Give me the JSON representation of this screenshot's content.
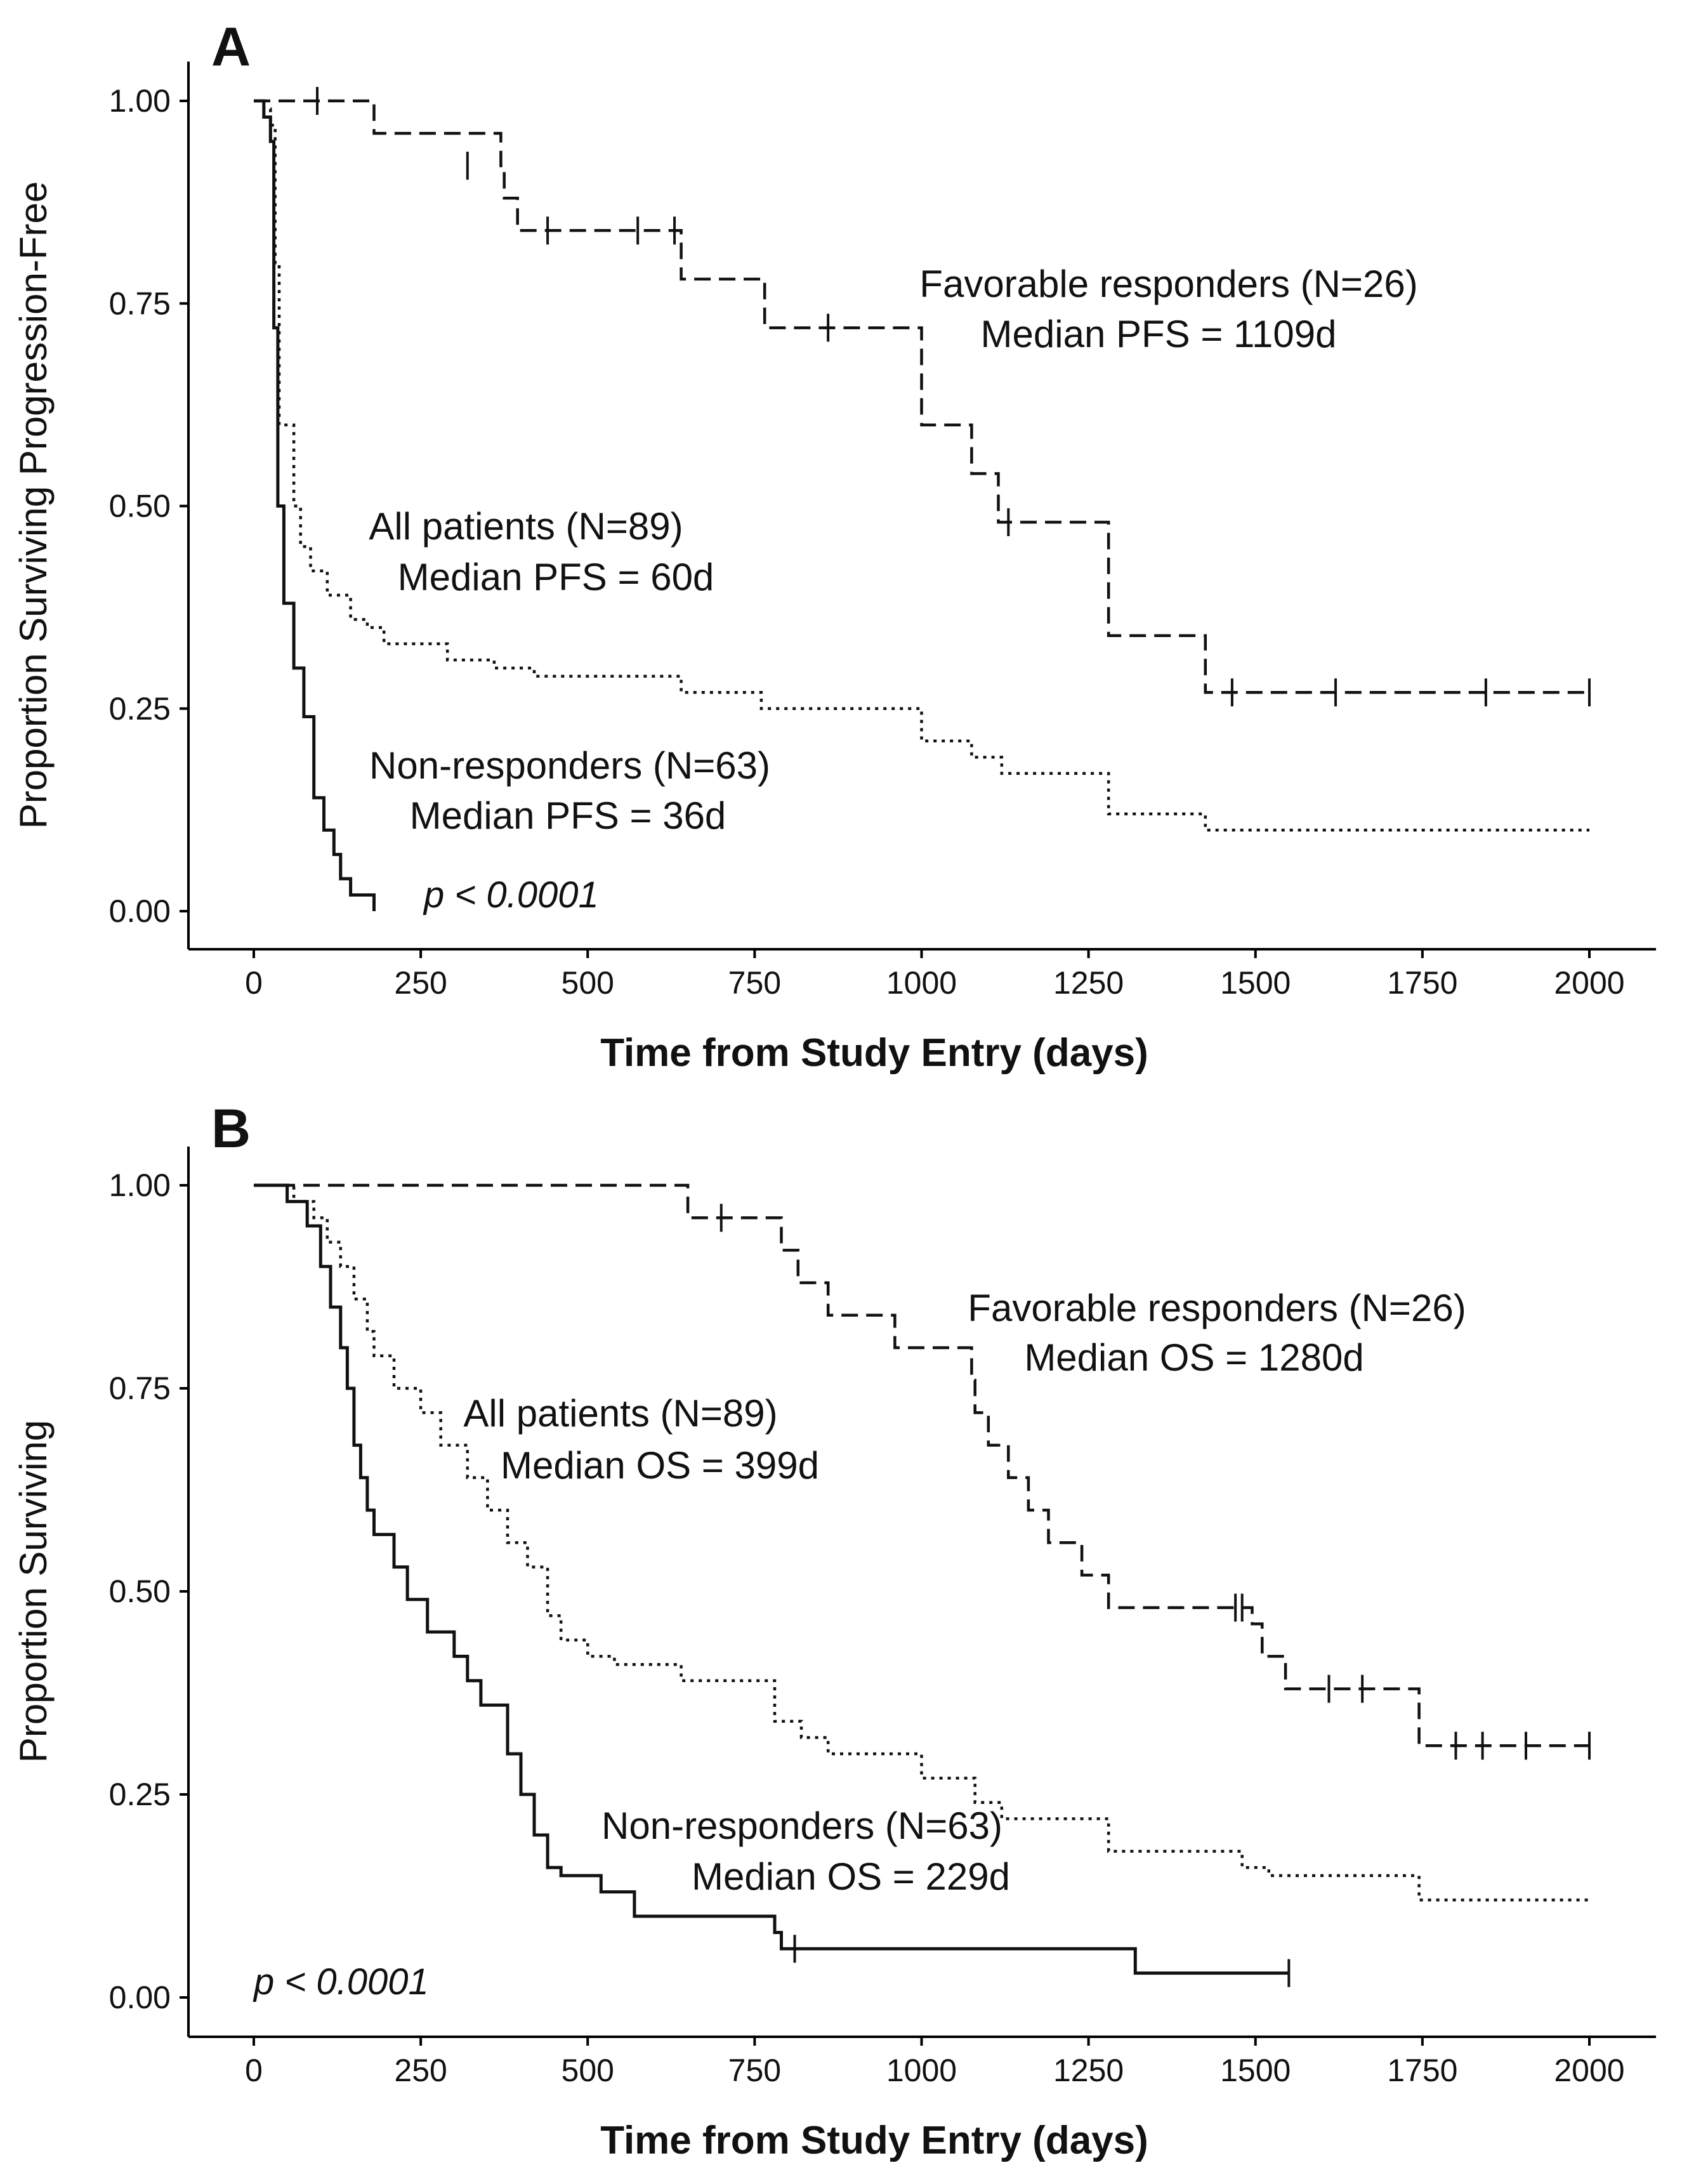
{
  "chart_data": [
    {
      "type": "line",
      "panel": "A",
      "title": "A",
      "xlabel": "Time from Study Entry (days)",
      "ylabel": "Proportion Surviving Progression-Free",
      "xlim": [
        0,
        2000
      ],
      "ylim": [
        0,
        1
      ],
      "xticks": [
        "0",
        "250",
        "500",
        "750",
        "1000",
        "1250",
        "1500",
        "1750",
        "2000"
      ],
      "yticks": [
        "0.00",
        "0.25",
        "0.50",
        "0.75",
        "1.00"
      ],
      "pvalue": "p < 0.0001",
      "annotations": [
        {
          "series": "favorable",
          "line1": "Favorable responders (N=26)",
          "line2": "Median PFS = 1109d"
        },
        {
          "series": "all",
          "line1": "All patients (N=89)",
          "line2": "Median PFS = 60d"
        },
        {
          "series": "non",
          "line1": "Non-responders (N=63)",
          "line2": "Median PFS = 36d"
        }
      ],
      "series": [
        {
          "name": "Favorable responders",
          "key": "favorable",
          "style": "dashed",
          "x": [
            0,
            180,
            370,
            375,
            395,
            415,
            640,
            765,
            1000,
            1075,
            1115,
            1280,
            1425,
            2000
          ],
          "y": [
            1.0,
            0.96,
            0.92,
            0.88,
            0.84,
            0.84,
            0.78,
            0.72,
            0.6,
            0.54,
            0.48,
            0.34,
            0.27,
            0.27
          ],
          "censor": [
            {
              "x": 95,
              "y": 1.0
            },
            {
              "x": 320,
              "y": 0.92
            },
            {
              "x": 440,
              "y": 0.84
            },
            {
              "x": 575,
              "y": 0.84
            },
            {
              "x": 630,
              "y": 0.84
            },
            {
              "x": 860,
              "y": 0.72
            },
            {
              "x": 1130,
              "y": 0.48
            },
            {
              "x": 1465,
              "y": 0.27
            },
            {
              "x": 1620,
              "y": 0.27
            },
            {
              "x": 1845,
              "y": 0.27
            },
            {
              "x": 2000,
              "y": 0.27
            }
          ]
        },
        {
          "name": "All patients",
          "key": "all",
          "style": "dotted",
          "x": [
            0,
            15,
            25,
            32,
            38,
            45,
            60,
            70,
            85,
            110,
            145,
            170,
            195,
            240,
            290,
            360,
            420,
            640,
            760,
            1000,
            1075,
            1120,
            1280,
            1425,
            2000
          ],
          "y": [
            1.0,
            0.99,
            0.97,
            0.8,
            0.6,
            0.6,
            0.5,
            0.45,
            0.42,
            0.39,
            0.36,
            0.35,
            0.33,
            0.33,
            0.31,
            0.3,
            0.29,
            0.27,
            0.25,
            0.21,
            0.19,
            0.17,
            0.12,
            0.1,
            0.1
          ],
          "censor": []
        },
        {
          "name": "Non-responders",
          "key": "non",
          "style": "solid",
          "x": [
            0,
            15,
            25,
            30,
            36,
            45,
            60,
            75,
            90,
            105,
            120,
            130,
            145,
            180
          ],
          "y": [
            1.0,
            0.98,
            0.95,
            0.72,
            0.5,
            0.38,
            0.3,
            0.24,
            0.14,
            0.1,
            0.07,
            0.04,
            0.02,
            0.0
          ],
          "censor": []
        }
      ]
    },
    {
      "type": "line",
      "panel": "B",
      "title": "B",
      "xlabel": "Time from Study Entry (days)",
      "ylabel": "Proportion Surviving",
      "xlim": [
        0,
        2000
      ],
      "ylim": [
        0,
        1
      ],
      "xticks": [
        "0",
        "250",
        "500",
        "750",
        "1000",
        "1250",
        "1500",
        "1750",
        "2000"
      ],
      "yticks": [
        "0.00",
        "0.25",
        "0.50",
        "0.75",
        "1.00"
      ],
      "pvalue": "p < 0.0001",
      "annotations": [
        {
          "series": "favorable",
          "line1": "Favorable responders (N=26)",
          "line2": "Median OS = 1280d"
        },
        {
          "series": "all",
          "line1": "All patients (N=89)",
          "line2": "Median OS = 399d"
        },
        {
          "series": "non",
          "line1": "Non-responders (N=63)",
          "line2": "Median OS = 229d"
        }
      ],
      "series": [
        {
          "name": "Favorable responders",
          "key": "favorable",
          "style": "dashed",
          "x": [
            0,
            650,
            790,
            815,
            860,
            960,
            1075,
            1080,
            1100,
            1130,
            1160,
            1190,
            1240,
            1280,
            1495,
            1510,
            1545,
            1745,
            2000
          ],
          "y": [
            1.0,
            0.96,
            0.92,
            0.88,
            0.84,
            0.8,
            0.76,
            0.72,
            0.68,
            0.64,
            0.6,
            0.56,
            0.52,
            0.48,
            0.46,
            0.42,
            0.38,
            0.31,
            0.31
          ],
          "censor": [
            {
              "x": 700,
              "y": 0.96
            },
            {
              "x": 1470,
              "y": 0.48
            },
            {
              "x": 1480,
              "y": 0.48
            },
            {
              "x": 1610,
              "y": 0.38
            },
            {
              "x": 1660,
              "y": 0.38
            },
            {
              "x": 1800,
              "y": 0.31
            },
            {
              "x": 1840,
              "y": 0.31
            },
            {
              "x": 1905,
              "y": 0.31
            },
            {
              "x": 2000,
              "y": 0.31
            }
          ]
        },
        {
          "name": "All patients",
          "key": "all",
          "style": "dotted",
          "x": [
            0,
            60,
            90,
            110,
            130,
            150,
            170,
            180,
            210,
            250,
            280,
            320,
            350,
            380,
            410,
            440,
            460,
            500,
            540,
            640,
            780,
            820,
            860,
            1000,
            1080,
            1120,
            1280,
            1480,
            1520,
            1745,
            2000
          ],
          "y": [
            1.0,
            0.98,
            0.96,
            0.93,
            0.9,
            0.86,
            0.82,
            0.79,
            0.75,
            0.72,
            0.68,
            0.64,
            0.6,
            0.56,
            0.53,
            0.47,
            0.44,
            0.42,
            0.41,
            0.39,
            0.34,
            0.32,
            0.3,
            0.27,
            0.24,
            0.22,
            0.18,
            0.16,
            0.15,
            0.12,
            0.12
          ],
          "censor": []
        },
        {
          "name": "Non-responders",
          "key": "non",
          "style": "solid",
          "x": [
            0,
            50,
            80,
            100,
            115,
            130,
            140,
            150,
            160,
            170,
            180,
            210,
            230,
            260,
            300,
            320,
            340,
            380,
            400,
            420,
            440,
            460,
            520,
            570,
            780,
            790,
            1320
          ],
          "y": [
            1.0,
            0.98,
            0.95,
            0.9,
            0.85,
            0.8,
            0.75,
            0.68,
            0.64,
            0.6,
            0.57,
            0.53,
            0.49,
            0.45,
            0.42,
            0.39,
            0.36,
            0.3,
            0.25,
            0.2,
            0.16,
            0.15,
            0.13,
            0.1,
            0.08,
            0.06,
            0.03
          ],
          "end": 1550,
          "censor": [
            {
              "x": 810,
              "y": 0.06
            },
            {
              "x": 1550,
              "y": 0.03
            }
          ]
        }
      ]
    }
  ]
}
